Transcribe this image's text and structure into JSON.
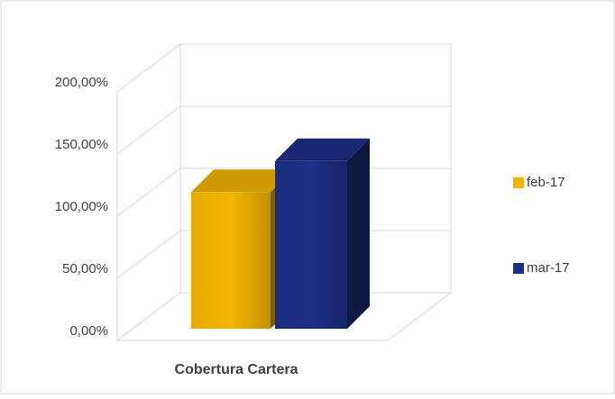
{
  "chart_data": {
    "type": "bar3d",
    "categories": [
      "Cobertura Cartera"
    ],
    "series": [
      {
        "name": "feb-17",
        "color": "#f2b600",
        "values": [
          110
        ]
      },
      {
        "name": "mar-17",
        "color": "#1c2f86",
        "values": [
          135
        ]
      }
    ],
    "ylim": [
      0,
      200
    ],
    "yticks": [
      {
        "value": 0,
        "label": "0,00%"
      },
      {
        "value": 50,
        "label": "50,00%"
      },
      {
        "value": 100,
        "label": "100,00%"
      },
      {
        "value": 150,
        "label": "150,00%"
      },
      {
        "value": 200,
        "label": "200,00%"
      }
    ],
    "grid": true,
    "legend": "right"
  }
}
